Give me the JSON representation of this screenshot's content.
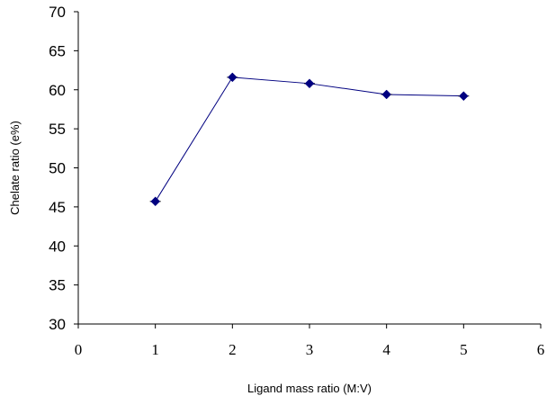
{
  "chart_data": {
    "type": "line",
    "title": "",
    "xlabel": "Ligand mass ratio (M:V)",
    "ylabel": "Chelate ratio (e%)",
    "xlim": [
      0,
      6
    ],
    "ylim": [
      30,
      70
    ],
    "x_ticks": [
      "0",
      "1",
      "2",
      "3",
      "4",
      "5",
      "6"
    ],
    "y_ticks": [
      "30",
      "35",
      "40",
      "45",
      "50",
      "55",
      "60",
      "65",
      "70"
    ],
    "grid": false,
    "legend": "none",
    "series": [
      {
        "x": [
          1,
          2,
          3,
          4,
          5
        ],
        "values": [
          45.7,
          61.6,
          60.8,
          59.4,
          59.2
        ],
        "color": "#000080",
        "marker": "diamond",
        "error_bars": true
      }
    ]
  }
}
